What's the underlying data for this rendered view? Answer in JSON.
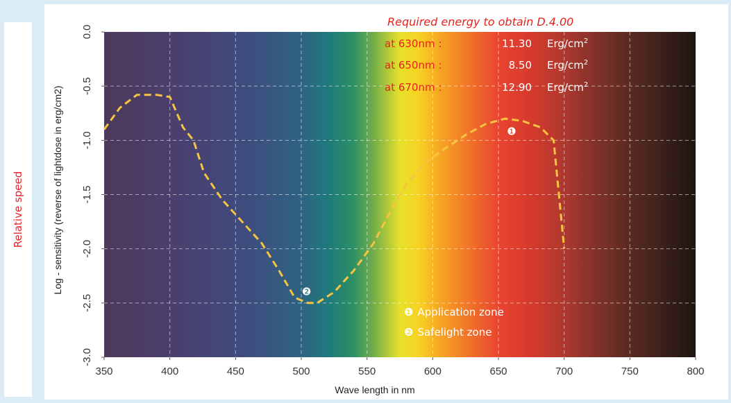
{
  "side_label": "Relative speed",
  "chart_data": {
    "type": "line",
    "xlabel": "Wave length in nm",
    "ylabel": "Log - sensitivity (reverse of lightdose in erg/cm2)",
    "xlim": [
      350,
      800
    ],
    "ylim": [
      -3.0,
      0.0
    ],
    "x_ticks": [
      "350",
      "400",
      "450",
      "500",
      "550",
      "600",
      "650",
      "700",
      "750",
      "800"
    ],
    "y_ticks": [
      "0.0",
      "-0.5",
      "-1.0",
      "-1.5",
      "-2.0",
      "-2.5",
      "-3.0"
    ],
    "grid": true,
    "background": "visible spectrum gradient",
    "series": [
      {
        "line_style": "dashed",
        "color": "#f5c542",
        "x": [
          350,
          362,
          375,
          390,
          400,
          410,
          418,
          426,
          440,
          455,
          470,
          483,
          495,
          505,
          512,
          525,
          540,
          555,
          568,
          580,
          595,
          610,
          625,
          640,
          655,
          668,
          682,
          692,
          700
        ],
        "y": [
          -0.9,
          -0.7,
          -0.58,
          -0.58,
          -0.6,
          -0.88,
          -1.0,
          -1.3,
          -1.55,
          -1.75,
          -1.95,
          -2.2,
          -2.45,
          -2.5,
          -2.5,
          -2.4,
          -2.2,
          -1.95,
          -1.65,
          -1.4,
          -1.2,
          -1.07,
          -0.95,
          -0.85,
          -0.8,
          -0.82,
          -0.88,
          -1.0,
          -2.0
        ]
      }
    ],
    "markers": [
      {
        "symbol": "❶",
        "x": 660,
        "y": -0.92
      },
      {
        "symbol": "❷",
        "x": 504,
        "y": -2.4
      }
    ],
    "annotation": {
      "title": "Required energy to obtain D.4.00",
      "rows": [
        {
          "label": "at 630nm :",
          "value": "11.30",
          "unit": "Erg/cm",
          "sup": "2"
        },
        {
          "label": "at 650nm :",
          "value": "8.50",
          "unit": "Erg/cm",
          "sup": "2"
        },
        {
          "label": "at 670nm :",
          "value": "12.90",
          "unit": "Erg/cm",
          "sup": "2"
        }
      ]
    },
    "legend": [
      {
        "symbol": "❶",
        "text": "Application zone"
      },
      {
        "symbol": "❷",
        "text": "Safelight zone"
      }
    ]
  }
}
